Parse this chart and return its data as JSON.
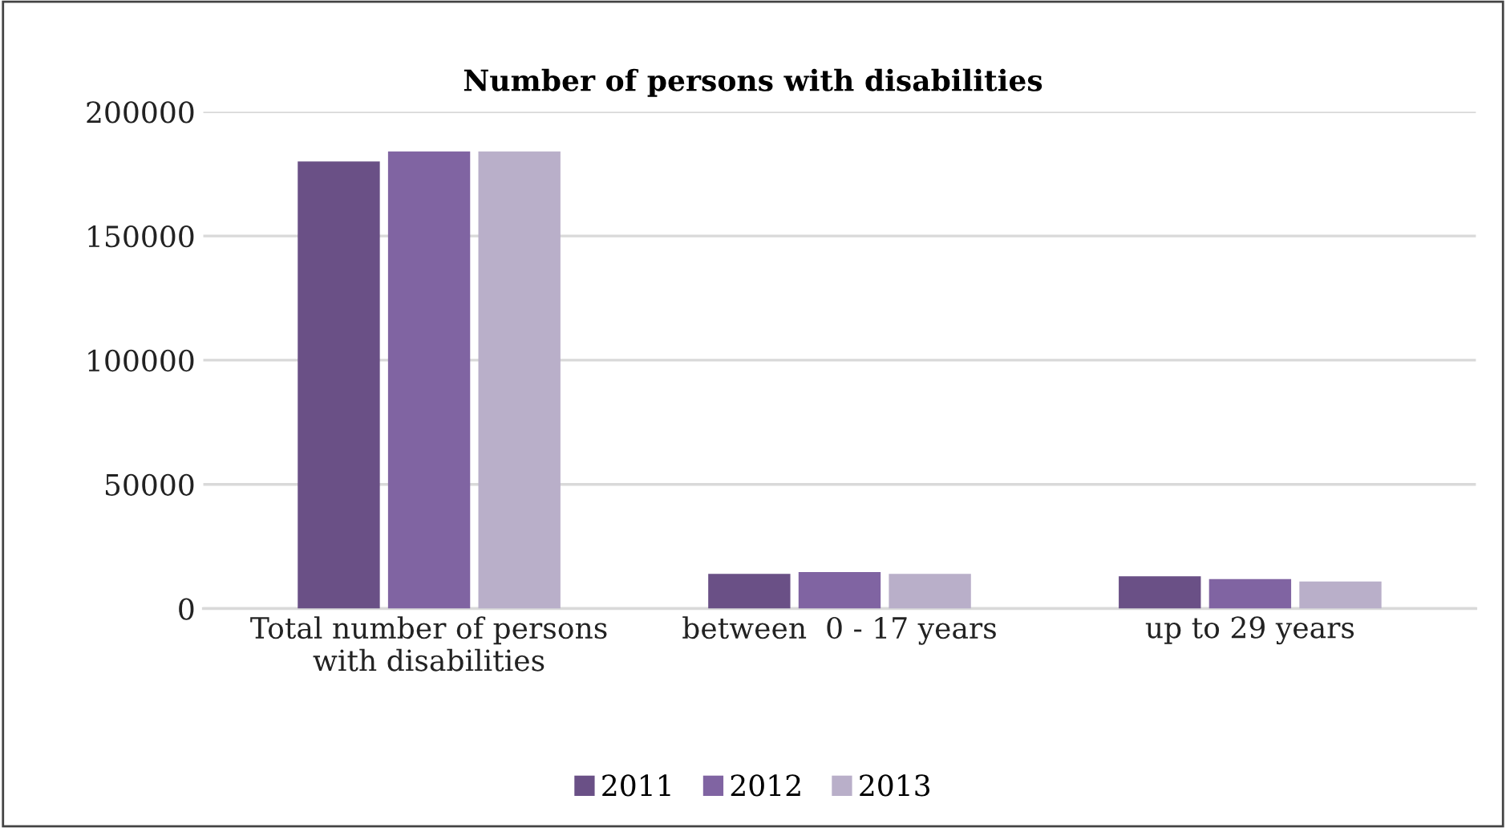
{
  "chart_data": {
    "type": "bar",
    "title": "Number of persons with disabilities",
    "categories": [
      "Total number of persons\nwith disabilities",
      "between  0 - 17 years",
      "up to 29 years"
    ],
    "series": [
      {
        "name": "2011",
        "color": "#6a5086",
        "values": [
          180000,
          14000,
          13000
        ]
      },
      {
        "name": "2012",
        "color": "#8064a2",
        "values": [
          184000,
          14700,
          11900
        ]
      },
      {
        "name": "2013",
        "color": "#b9afc9",
        "values": [
          184000,
          14000,
          10900
        ]
      }
    ],
    "ylim": [
      0,
      200000
    ],
    "yticks": [
      0,
      50000,
      100000,
      150000,
      200000
    ],
    "grid": "y",
    "legend": "bottom"
  }
}
